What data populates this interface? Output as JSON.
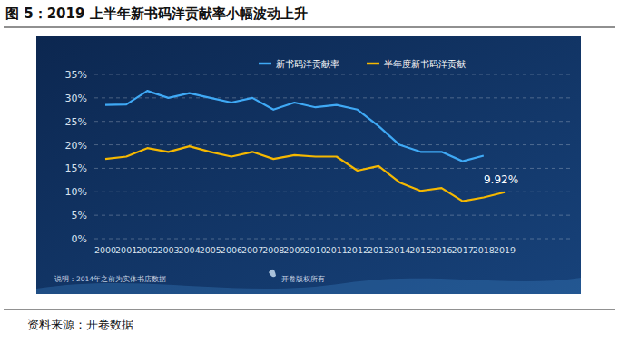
{
  "chart_data": {
    "type": "line",
    "title": "图 5：2019 上半年新书码洋贡献率小幅波动上升",
    "source": "资料来源：开卷数据",
    "annotations": [
      "说明：2014年之前为实体书店数据",
      "开卷版权所有"
    ],
    "categories": [
      "2000",
      "2001",
      "2002",
      "2003",
      "2004",
      "2005",
      "2006",
      "2007",
      "2008",
      "2009",
      "2010",
      "2011",
      "2012",
      "2013",
      "2014",
      "2015",
      "2016",
      "2017",
      "2018",
      "2019"
    ],
    "series": [
      {
        "name": "新书码洋贡献率",
        "color": "#3fa9f5",
        "values": [
          28.5,
          28.6,
          31.5,
          30,
          31,
          30,
          29,
          30,
          27.5,
          29,
          28,
          28.5,
          27.5,
          24,
          20,
          18.5,
          18.5,
          16.5,
          17.7,
          null
        ]
      },
      {
        "name": "半年度新书码洋贡献",
        "color": "#f5b800",
        "values": [
          17,
          17.5,
          19.3,
          18.5,
          19.7,
          18.5,
          17.5,
          18.5,
          17,
          17.8,
          17.5,
          17.5,
          14.5,
          15.5,
          12,
          10.2,
          10.8,
          8,
          8.8,
          9.92
        ],
        "value_labels": [
          null,
          null,
          null,
          null,
          null,
          null,
          null,
          null,
          null,
          null,
          null,
          null,
          null,
          null,
          null,
          null,
          null,
          null,
          null,
          "9.92%"
        ]
      }
    ],
    "ylim": [
      0,
      35
    ],
    "yticks": [
      {
        "value": 0,
        "label": "0%"
      },
      {
        "value": 5,
        "label": "5%"
      },
      {
        "value": 10,
        "label": "10%"
      },
      {
        "value": 15,
        "label": "15%"
      },
      {
        "value": 20,
        "label": "20%"
      },
      {
        "value": 25,
        "label": "25%"
      },
      {
        "value": 30,
        "label": "30%"
      },
      {
        "value": 35,
        "label": "35%"
      }
    ],
    "grid": true,
    "legend": "top"
  }
}
